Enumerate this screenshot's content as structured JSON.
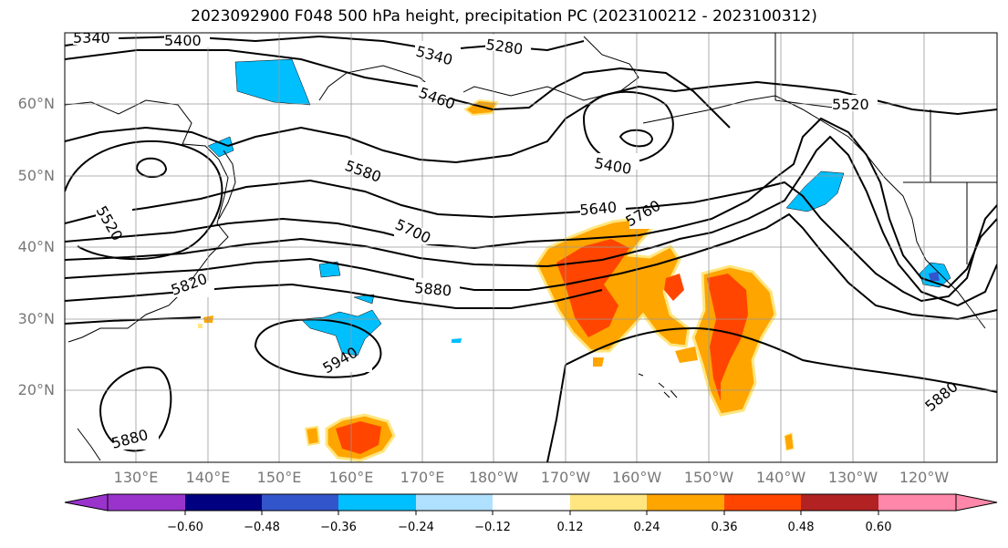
{
  "title": "2023092900 F048 500 hPa height, precipitation PC (2023100212 - 2023100312)",
  "lat_labels": [
    "60°N",
    "50°N",
    "40°N",
    "30°N",
    "20°N"
  ],
  "lon_labels": [
    "130°E",
    "140°E",
    "150°E",
    "160°E",
    "170°E",
    "180°W",
    "170°W",
    "160°W",
    "150°W",
    "140°W",
    "130°W",
    "120°W"
  ],
  "contour_labels": [
    "5340",
    "5400",
    "5340",
    "5280",
    "5460",
    "5520",
    "5580",
    "5400",
    "5640",
    "5760",
    "5700",
    "5520",
    "5820",
    "5880",
    "5940",
    "5880",
    "5880"
  ],
  "colorbar": {
    "ticks": [
      "−0.60",
      "−0.48",
      "−0.36",
      "−0.24",
      "−0.12",
      "0.12",
      "0.24",
      "0.36",
      "0.48",
      "0.60"
    ],
    "colors": [
      "#9933cc",
      "#000080",
      "#3355cc",
      "#00bfff",
      "#b0e0ff",
      "#ffffff",
      "#ffe680",
      "#ffa500",
      "#ff4500",
      "#b22222",
      "#ff88aa"
    ]
  }
}
